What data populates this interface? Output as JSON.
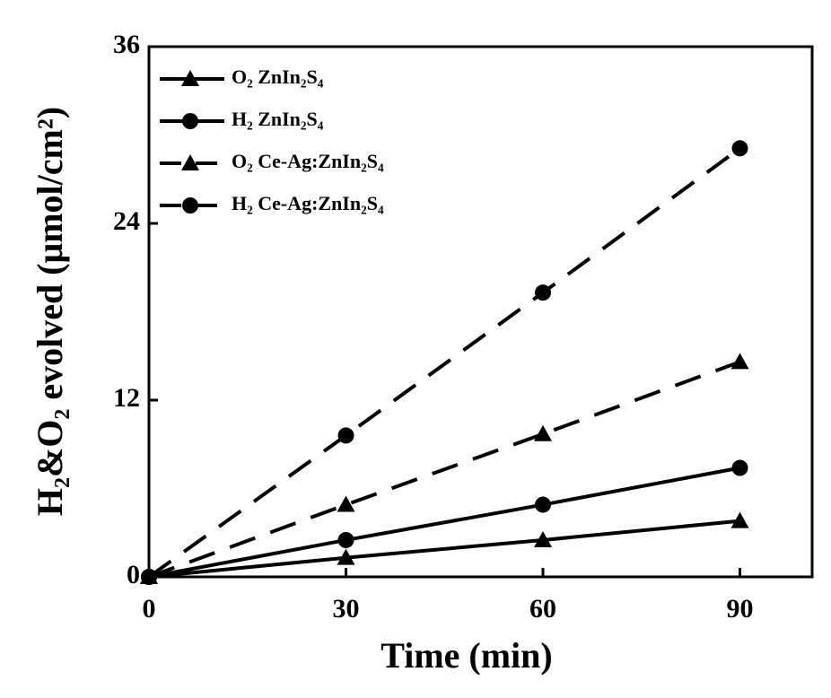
{
  "chart_data": {
    "type": "line",
    "x_label": "Time (min)",
    "y_label": "H₂&O₂ evolved (μmol/cm²)",
    "x": [
      0,
      30,
      60,
      90
    ],
    "xlim": [
      0,
      101
    ],
    "xticks": [
      0,
      30,
      60,
      90
    ],
    "ylim": [
      0,
      36
    ],
    "yticks": [
      0,
      12,
      24,
      36
    ],
    "legend": "upper-left",
    "series": [
      {
        "name": "O₂ ZnIn₂S₄",
        "color": "#000000",
        "dashed": false,
        "marker": "triangle",
        "values": [
          0,
          1.3,
          2.5,
          3.8
        ]
      },
      {
        "name": "H₂ ZnIn₂S₄",
        "color": "#000000",
        "dashed": false,
        "marker": "circle",
        "values": [
          0,
          2.5,
          4.9,
          7.4
        ]
      },
      {
        "name": "O₂ Ce-Ag:ZnIn₂S₄",
        "color": "#000000",
        "dashed": true,
        "marker": "triangle",
        "values": [
          0,
          4.9,
          9.7,
          14.6
        ]
      },
      {
        "name": "H₂ Ce-Ag:ZnIn₂S₄",
        "color": "#000000",
        "dashed": true,
        "marker": "circle",
        "values": [
          0,
          9.6,
          19.3,
          29.1
        ]
      }
    ]
  }
}
